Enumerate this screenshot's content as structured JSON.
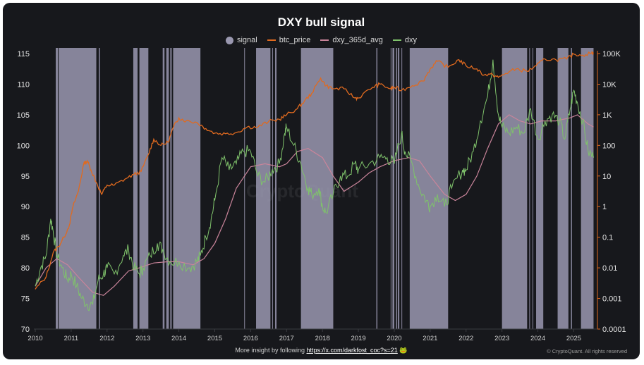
{
  "chart_data": {
    "type": "line",
    "title": "DXY bull signal",
    "legend": [
      {
        "name": "signal",
        "color": "#9a98b0",
        "kind": "area"
      },
      {
        "name": "btc_price",
        "color": "#e06a1f",
        "kind": "line"
      },
      {
        "name": "dxy_365d_avg",
        "color": "#c9849a",
        "kind": "line"
      },
      {
        "name": "dxy",
        "color": "#7fc26b",
        "kind": "line"
      }
    ],
    "x_ticks": [
      "2010",
      "2011",
      "2012",
      "2013",
      "2014",
      "2015",
      "2016",
      "2017",
      "2018",
      "2019",
      "2020",
      "2021",
      "2022",
      "2023",
      "2024",
      "2025"
    ],
    "x_range": [
      2010.0,
      2025.6
    ],
    "y_left": {
      "ticks": [
        "115",
        "110",
        "105",
        "100",
        "95",
        "90",
        "85",
        "80",
        "75",
        "70"
      ],
      "range": [
        70,
        115
      ]
    },
    "y_right": {
      "ticks": [
        "100K",
        "10K",
        "1K",
        "100",
        "10",
        "1",
        "0.1",
        "0.01",
        "0.001",
        "0.0001"
      ],
      "log_range": [
        -4,
        5
      ],
      "scale": "log"
    },
    "series": [
      {
        "name": "dxy",
        "points": [
          [
            2010.0,
            77
          ],
          [
            2010.15,
            80
          ],
          [
            2010.3,
            82
          ],
          [
            2010.43,
            88
          ],
          [
            2010.5,
            86
          ],
          [
            2010.6,
            82
          ],
          [
            2010.75,
            80
          ],
          [
            2010.9,
            78
          ],
          [
            2011.0,
            79
          ],
          [
            2011.15,
            77
          ],
          [
            2011.3,
            75
          ],
          [
            2011.45,
            74
          ],
          [
            2011.6,
            74
          ],
          [
            2011.75,
            78
          ],
          [
            2011.9,
            79
          ],
          [
            2012.0,
            80
          ],
          [
            2012.2,
            79
          ],
          [
            2012.45,
            82
          ],
          [
            2012.6,
            83
          ],
          [
            2012.75,
            80
          ],
          [
            2012.9,
            79
          ],
          [
            2013.0,
            80
          ],
          [
            2013.2,
            82
          ],
          [
            2013.4,
            84
          ],
          [
            2013.55,
            83
          ],
          [
            2013.75,
            81
          ],
          [
            2014.0,
            81
          ],
          [
            2014.3,
            80
          ],
          [
            2014.5,
            81
          ],
          [
            2014.6,
            82
          ],
          [
            2014.75,
            85
          ],
          [
            2014.9,
            88
          ],
          [
            2015.0,
            91
          ],
          [
            2015.2,
            98
          ],
          [
            2015.4,
            96
          ],
          [
            2015.6,
            97
          ],
          [
            2015.8,
            99
          ],
          [
            2016.0,
            99
          ],
          [
            2016.2,
            95
          ],
          [
            2016.4,
            94
          ],
          [
            2016.6,
            96
          ],
          [
            2016.8,
            97
          ],
          [
            2016.95,
            102
          ],
          [
            2017.0,
            103
          ],
          [
            2017.2,
            100
          ],
          [
            2017.4,
            97
          ],
          [
            2017.6,
            93
          ],
          [
            2017.7,
            92
          ],
          [
            2017.9,
            93
          ],
          [
            2018.0,
            90
          ],
          [
            2018.1,
            89
          ],
          [
            2018.3,
            92
          ],
          [
            2018.5,
            95
          ],
          [
            2018.7,
            95
          ],
          [
            2018.9,
            97
          ],
          [
            2019.0,
            96
          ],
          [
            2019.3,
            97
          ],
          [
            2019.6,
            98
          ],
          [
            2019.8,
            98
          ],
          [
            2020.0,
            97
          ],
          [
            2020.2,
            102
          ],
          [
            2020.3,
            99
          ],
          [
            2020.5,
            97
          ],
          [
            2020.7,
            93
          ],
          [
            2020.9,
            91
          ],
          [
            2021.0,
            90
          ],
          [
            2021.2,
            92
          ],
          [
            2021.4,
            90
          ],
          [
            2021.6,
            93
          ],
          [
            2021.9,
            96
          ],
          [
            2022.0,
            96
          ],
          [
            2022.2,
            99
          ],
          [
            2022.4,
            104
          ],
          [
            2022.6,
            108
          ],
          [
            2022.75,
            114
          ],
          [
            2022.9,
            105
          ],
          [
            2023.0,
            103
          ],
          [
            2023.2,
            102
          ],
          [
            2023.4,
            103
          ],
          [
            2023.6,
            102
          ],
          [
            2023.8,
            106
          ],
          [
            2024.0,
            101
          ],
          [
            2024.2,
            104
          ],
          [
            2024.4,
            105
          ],
          [
            2024.6,
            104
          ],
          [
            2024.75,
            101
          ],
          [
            2024.9,
            106
          ],
          [
            2025.0,
            109
          ],
          [
            2025.1,
            107
          ],
          [
            2025.25,
            104
          ],
          [
            2025.4,
            99
          ],
          [
            2025.55,
            98
          ]
        ]
      },
      {
        "name": "dxy_365d_avg",
        "points": [
          [
            2010.0,
            77
          ],
          [
            2010.3,
            80
          ],
          [
            2010.6,
            81.5
          ],
          [
            2010.9,
            80.5
          ],
          [
            2011.2,
            78.5
          ],
          [
            2011.6,
            76
          ],
          [
            2011.9,
            75.5
          ],
          [
            2012.2,
            77
          ],
          [
            2012.6,
            79.5
          ],
          [
            2012.9,
            80
          ],
          [
            2013.3,
            80.8
          ],
          [
            2013.7,
            81
          ],
          [
            2014.0,
            81
          ],
          [
            2014.4,
            80.5
          ],
          [
            2014.7,
            81.5
          ],
          [
            2015.0,
            84
          ],
          [
            2015.3,
            88
          ],
          [
            2015.6,
            93
          ],
          [
            2016.0,
            96.5
          ],
          [
            2016.4,
            97
          ],
          [
            2016.8,
            96.5
          ],
          [
            2017.0,
            97
          ],
          [
            2017.3,
            99
          ],
          [
            2017.6,
            99.5
          ],
          [
            2018.0,
            98
          ],
          [
            2018.3,
            95
          ],
          [
            2018.6,
            92.5
          ],
          [
            2019.0,
            94
          ],
          [
            2019.3,
            95.5
          ],
          [
            2019.6,
            96.5
          ],
          [
            2020.0,
            97.5
          ],
          [
            2020.4,
            98
          ],
          [
            2020.7,
            97.5
          ],
          [
            2021.0,
            95
          ],
          [
            2021.4,
            92
          ],
          [
            2021.7,
            91
          ],
          [
            2022.0,
            92
          ],
          [
            2022.3,
            95
          ],
          [
            2022.6,
            99.5
          ],
          [
            2022.9,
            103.5
          ],
          [
            2023.2,
            105
          ],
          [
            2023.5,
            104
          ],
          [
            2023.8,
            103.5
          ],
          [
            2024.1,
            104
          ],
          [
            2024.5,
            104
          ],
          [
            2024.9,
            104.5
          ],
          [
            2025.1,
            105
          ],
          [
            2025.4,
            103.5
          ],
          [
            2025.55,
            103
          ]
        ]
      },
      {
        "name": "btc_price_log10",
        "points": [
          [
            2010.0,
            -2.7
          ],
          [
            2010.3,
            -2.3
          ],
          [
            2010.5,
            -1.5
          ],
          [
            2010.65,
            -1.3
          ],
          [
            2010.8,
            -1.0
          ],
          [
            2010.95,
            -0.6
          ],
          [
            2011.05,
            0.0
          ],
          [
            2011.2,
            0.5
          ],
          [
            2011.35,
            1.4
          ],
          [
            2011.45,
            1.5
          ],
          [
            2011.55,
            1.2
          ],
          [
            2011.7,
            0.8
          ],
          [
            2011.85,
            0.4
          ],
          [
            2012.0,
            0.7
          ],
          [
            2012.2,
            0.7
          ],
          [
            2012.5,
            0.9
          ],
          [
            2012.75,
            1.05
          ],
          [
            2012.95,
            1.15
          ],
          [
            2013.15,
            1.7
          ],
          [
            2013.3,
            2.2
          ],
          [
            2013.5,
            2.0
          ],
          [
            2013.7,
            2.1
          ],
          [
            2013.85,
            2.6
          ],
          [
            2014.0,
            2.9
          ],
          [
            2014.2,
            2.8
          ],
          [
            2014.5,
            2.75
          ],
          [
            2014.75,
            2.55
          ],
          [
            2015.0,
            2.4
          ],
          [
            2015.3,
            2.38
          ],
          [
            2015.6,
            2.42
          ],
          [
            2015.9,
            2.6
          ],
          [
            2016.2,
            2.6
          ],
          [
            2016.5,
            2.78
          ],
          [
            2016.8,
            2.85
          ],
          [
            2017.0,
            3.0
          ],
          [
            2017.3,
            3.2
          ],
          [
            2017.5,
            3.45
          ],
          [
            2017.7,
            3.7
          ],
          [
            2017.95,
            4.2
          ],
          [
            2018.1,
            3.95
          ],
          [
            2018.3,
            3.85
          ],
          [
            2018.6,
            3.85
          ],
          [
            2018.9,
            3.55
          ],
          [
            2019.0,
            3.55
          ],
          [
            2019.4,
            3.9
          ],
          [
            2019.6,
            4.0
          ],
          [
            2019.9,
            3.85
          ],
          [
            2020.0,
            3.9
          ],
          [
            2020.2,
            3.8
          ],
          [
            2020.5,
            3.95
          ],
          [
            2020.8,
            4.1
          ],
          [
            2021.0,
            4.5
          ],
          [
            2021.2,
            4.75
          ],
          [
            2021.5,
            4.55
          ],
          [
            2021.8,
            4.8
          ],
          [
            2022.0,
            4.6
          ],
          [
            2022.3,
            4.5
          ],
          [
            2022.5,
            4.3
          ],
          [
            2022.75,
            4.3
          ],
          [
            2022.9,
            4.22
          ],
          [
            2023.1,
            4.35
          ],
          [
            2023.4,
            4.5
          ],
          [
            2023.7,
            4.42
          ],
          [
            2023.95,
            4.6
          ],
          [
            2024.2,
            4.82
          ],
          [
            2024.5,
            4.8
          ],
          [
            2024.8,
            4.82
          ],
          [
            2025.0,
            4.98
          ],
          [
            2025.25,
            4.95
          ],
          [
            2025.5,
            5.02
          ],
          [
            2025.55,
            5.03
          ]
        ]
      }
    ],
    "signal_bands": [
      [
        2010.57,
        2010.63
      ],
      [
        2010.65,
        2011.7
      ],
      [
        2011.77,
        2011.8
      ],
      [
        2012.73,
        2012.85
      ],
      [
        2012.9,
        2013.15
      ],
      [
        2013.55,
        2013.6
      ],
      [
        2013.65,
        2013.72
      ],
      [
        2013.76,
        2013.8
      ],
      [
        2013.84,
        2014.6
      ],
      [
        2015.82,
        2015.84
      ],
      [
        2016.15,
        2016.55
      ],
      [
        2016.6,
        2016.62
      ],
      [
        2016.68,
        2016.72
      ],
      [
        2017.4,
        2018.3
      ],
      [
        2019.5,
        2019.53
      ],
      [
        2019.9,
        2019.92
      ],
      [
        2019.95,
        2020.0
      ],
      [
        2020.05,
        2020.08
      ],
      [
        2020.1,
        2020.14
      ],
      [
        2020.2,
        2020.22
      ],
      [
        2020.43,
        2021.5
      ],
      [
        2023.0,
        2023.7
      ],
      [
        2023.76,
        2023.78
      ],
      [
        2023.85,
        2023.87
      ],
      [
        2023.95,
        2024.15
      ],
      [
        2024.55,
        2024.85
      ],
      [
        2024.92,
        2024.95
      ],
      [
        2025.2,
        2025.55
      ]
    ]
  },
  "header": {
    "title": "DXY bull signal"
  },
  "legend": {
    "signal": "signal",
    "btc_price": "btc_price",
    "dxy_avg": "dxy_365d_avg",
    "dxy": "dxy"
  },
  "footer": {
    "text": "More insight by following",
    "link": "https://x.com/darkfost_coc?s=21",
    "emoji": "🐸",
    "copyright": "© CryptoQuant. All rights reserved"
  },
  "watermark": "CryptoQuant"
}
